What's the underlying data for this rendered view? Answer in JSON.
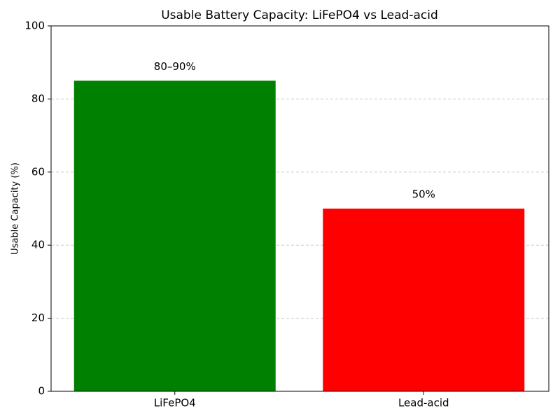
{
  "chart_data": {
    "type": "bar",
    "title": "Usable Battery Capacity: LiFePO4 vs Lead-acid",
    "y_label": "Usable Capacity (%)",
    "categories": [
      "LiFePO4",
      "Lead-acid"
    ],
    "values": [
      85,
      50
    ],
    "value_labels": [
      "80–90%",
      "50%"
    ],
    "colors": [
      "#008000",
      "#ff0000"
    ],
    "ylim": [
      0,
      100
    ],
    "yticks": [
      0,
      20,
      40,
      60,
      80,
      100
    ],
    "grid": true
  }
}
